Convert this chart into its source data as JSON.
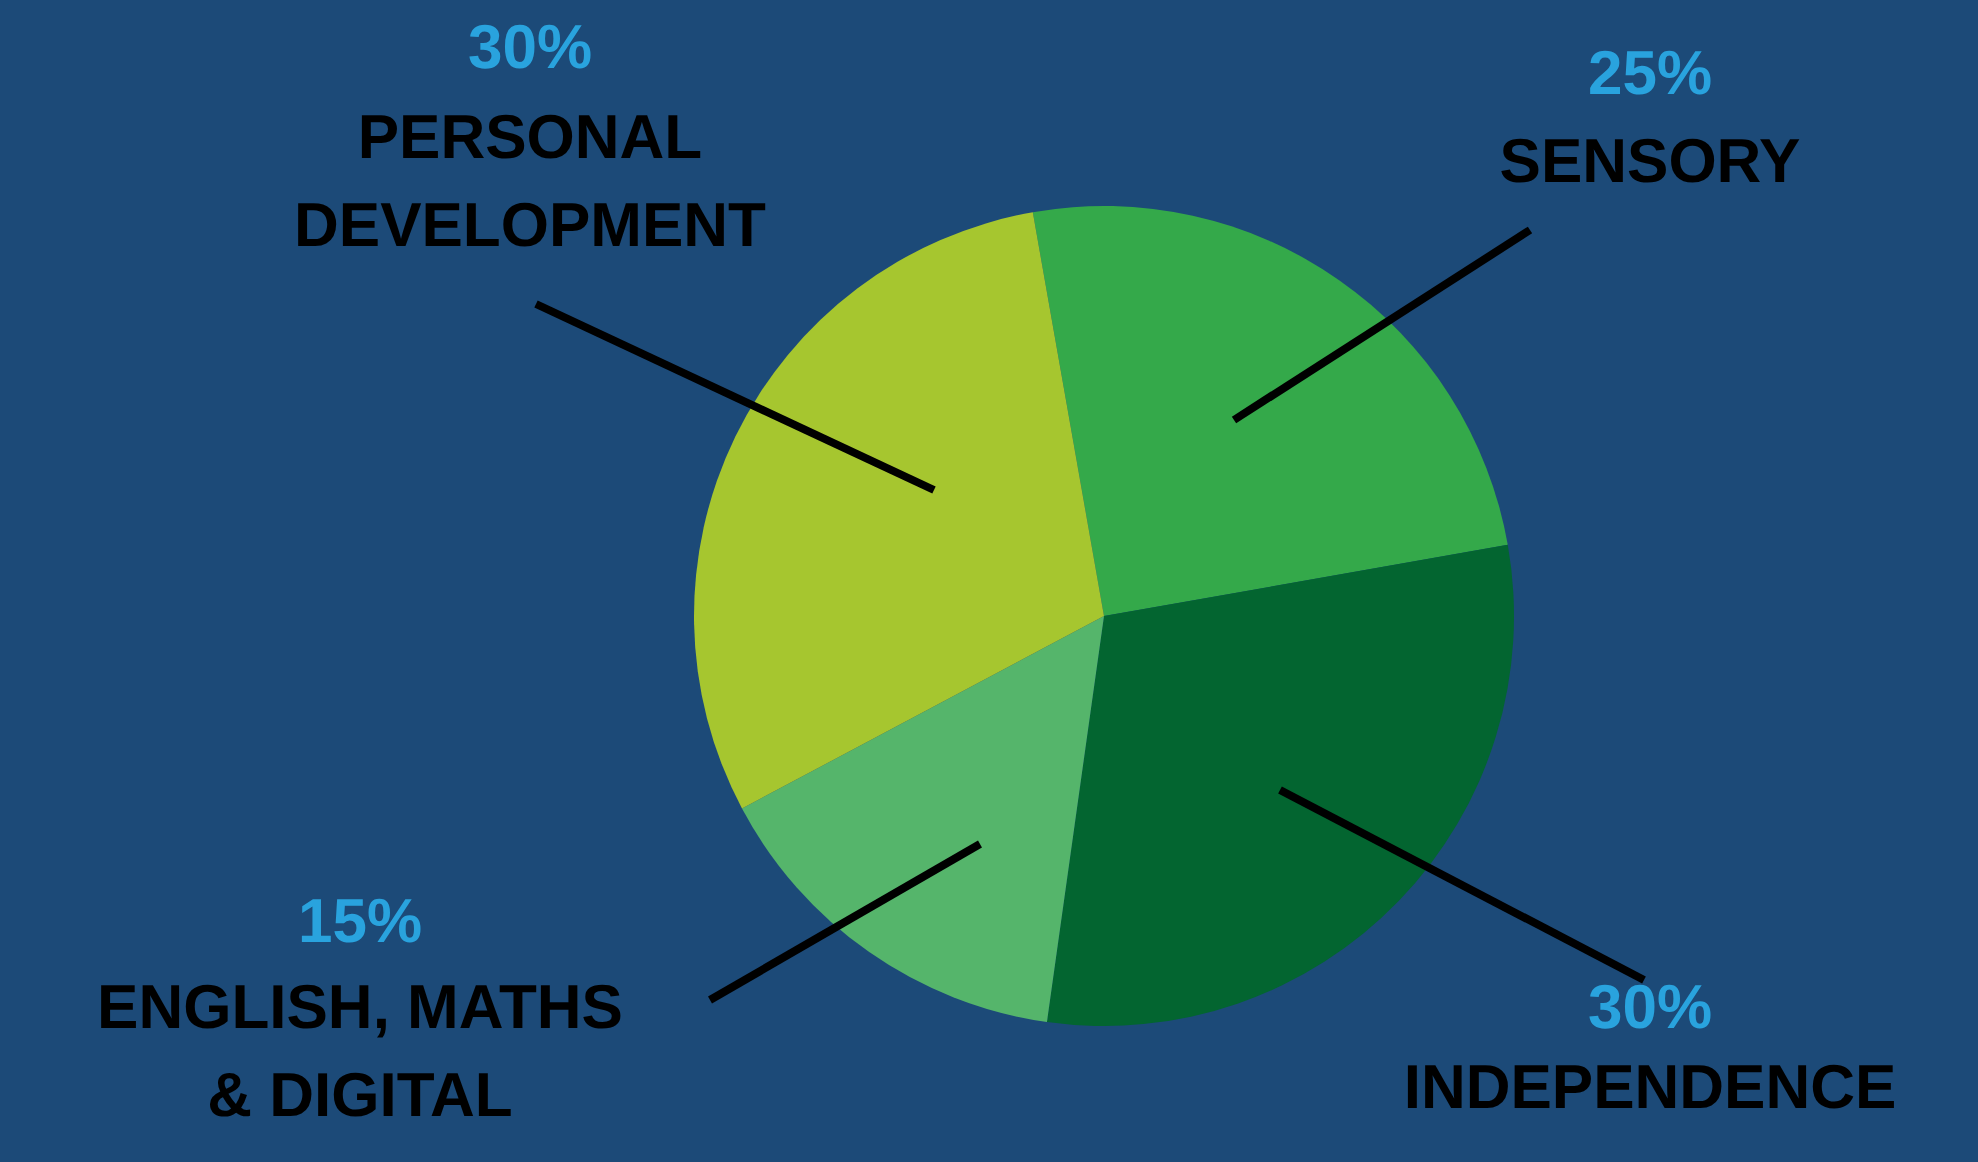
{
  "chart_data": {
    "type": "pie",
    "categories": [
      "SENSORY",
      "INDEPENDENCE",
      "ENGLISH, MATHS & DIGITAL",
      "PERSONAL DEVELOPMENT"
    ],
    "values": [
      25,
      30,
      15,
      30
    ],
    "value_labels": [
      "25%",
      "30%",
      "15%",
      "30%"
    ],
    "colors": [
      "#34a94a",
      "#036530",
      "#55b56b",
      "#a6c62f"
    ]
  }
}
